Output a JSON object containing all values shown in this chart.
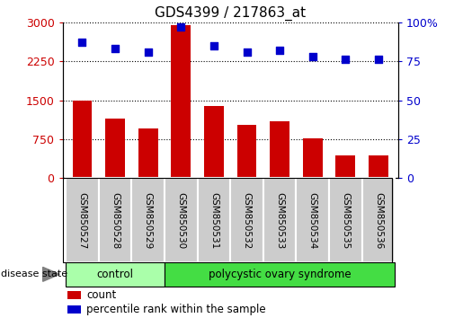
{
  "title": "GDS4399 / 217863_at",
  "samples": [
    "GSM850527",
    "GSM850528",
    "GSM850529",
    "GSM850530",
    "GSM850531",
    "GSM850532",
    "GSM850533",
    "GSM850534",
    "GSM850535",
    "GSM850536"
  ],
  "bar_values": [
    1500,
    1150,
    950,
    2950,
    1380,
    1020,
    1100,
    770,
    430,
    430
  ],
  "dot_values": [
    87,
    83,
    81,
    97,
    85,
    81,
    82,
    78,
    76,
    76
  ],
  "bar_color": "#cc0000",
  "dot_color": "#0000cc",
  "ylim_left": [
    0,
    3000
  ],
  "ylim_right": [
    0,
    100
  ],
  "yticks_left": [
    0,
    750,
    1500,
    2250,
    3000
  ],
  "ytick_labels_left": [
    "0",
    "750",
    "1500",
    "2250",
    "3000"
  ],
  "yticks_right": [
    0,
    25,
    50,
    75,
    100
  ],
  "ytick_labels_right": [
    "0",
    "25",
    "50",
    "75",
    "100%"
  ],
  "groups": [
    {
      "label": "control",
      "indices": [
        0,
        1,
        2
      ],
      "color": "#aaffaa"
    },
    {
      "label": "polycystic ovary syndrome",
      "indices": [
        3,
        4,
        5,
        6,
        7,
        8,
        9
      ],
      "color": "#44dd44"
    }
  ],
  "group_header": "disease state",
  "legend_count_label": "count",
  "legend_pct_label": "percentile rank within the sample",
  "background_color": "#ffffff",
  "sample_bg_color": "#cccccc"
}
